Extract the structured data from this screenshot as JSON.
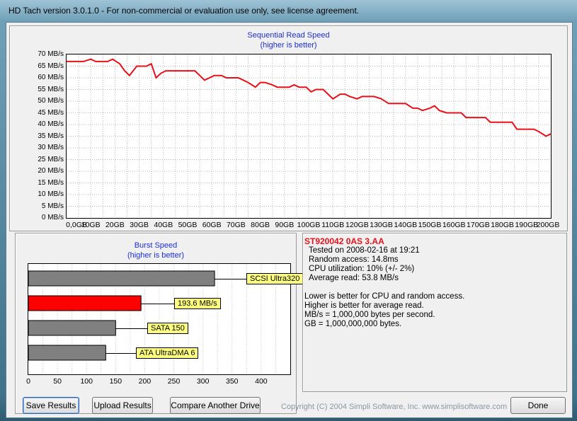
{
  "window": {
    "title": "HD Tach version 3.0.1.0  - For non-commercial or evaluation use only, see license agreement."
  },
  "sequential": {
    "title": "Sequential Read Speed",
    "subtitle": "(higher is better)",
    "y_ticks": [
      "70 MB/s",
      "65 MB/s",
      "60 MB/s",
      "55 MB/s",
      "50 MB/s",
      "45 MB/s",
      "40 MB/s",
      "35 MB/s",
      "30 MB/s",
      "25 MB/s",
      "20 MB/s",
      "15 MB/s",
      "10 MB/s",
      "5 MB/s",
      "0 MB/s"
    ],
    "x_ticks": [
      "0,0GB",
      "10GB",
      "20GB",
      "30GB",
      "40GB",
      "50GB",
      "60GB",
      "70GB",
      "80GB",
      "90GB",
      "100GB",
      "110GB",
      "120GB",
      "130GB",
      "140GB",
      "150GB",
      "160GB",
      "170GB",
      "180GB",
      "190GB",
      "200GB"
    ]
  },
  "chart_data": [
    {
      "type": "line",
      "title": "Sequential Read Speed",
      "subtitle": "(higher is better)",
      "xlabel": "",
      "ylabel": "",
      "xlim": [
        0,
        200
      ],
      "ylim": [
        0,
        70
      ],
      "x_unit": "GB",
      "y_unit": "MB/s",
      "grid": true,
      "series": [
        {
          "color": "#e8101a",
          "x": [
            0,
            4,
            7,
            10,
            12,
            14,
            17,
            19,
            22,
            24,
            26,
            29,
            30,
            33,
            35,
            37,
            39,
            41,
            44,
            47,
            50,
            53,
            55,
            57,
            59,
            61,
            64,
            66,
            68,
            71,
            73,
            75,
            78,
            80,
            82,
            85,
            87,
            89,
            92,
            94,
            96,
            99,
            101,
            103,
            106,
            108,
            110,
            113,
            115,
            117,
            120,
            122,
            124,
            127,
            130,
            133,
            136,
            138,
            140,
            143,
            145,
            147,
            150,
            152,
            154,
            157,
            159,
            161,
            163,
            165,
            168,
            171,
            173,
            175,
            178,
            181,
            184,
            186,
            188,
            191,
            193,
            195,
            198,
            200
          ],
          "y": [
            67,
            67,
            67,
            68,
            67,
            67,
            67,
            68,
            66,
            63,
            61,
            65,
            65,
            65,
            66,
            60,
            62,
            63,
            63,
            63,
            63,
            63,
            61,
            59,
            60,
            61,
            61,
            60,
            60,
            60,
            59,
            58,
            56,
            58,
            58,
            57,
            56,
            56,
            56,
            57,
            56,
            56,
            54,
            55,
            55,
            53,
            51,
            53,
            53,
            52,
            51,
            52,
            52,
            52,
            51,
            49,
            49,
            49,
            49,
            47,
            47,
            46,
            47,
            48,
            46,
            45,
            45,
            45,
            45,
            43,
            43,
            43,
            43,
            41,
            41,
            41,
            41,
            38,
            38,
            38,
            38,
            37,
            35,
            36
          ]
        }
      ]
    },
    {
      "type": "bar",
      "title": "Burst Speed",
      "subtitle": "(higher is better)",
      "orientation": "horizontal",
      "xlim": [
        0,
        450
      ],
      "x_ticks": [
        "0",
        "50",
        "100",
        "150",
        "200",
        "250",
        "300",
        "350",
        "400"
      ],
      "categories": [
        "SCSI Ultra320",
        "193.6 MB/s",
        "SATA 150",
        "ATA UltraDMA 6"
      ],
      "values": [
        320,
        193.6,
        150,
        133
      ],
      "colors": [
        "#808080",
        "#ff0000",
        "#808080",
        "#808080"
      ],
      "grid": true
    }
  ],
  "info": {
    "drive": "ST920042 0AS 3.AA",
    "tested": "Tested on 2008-02-16 at 19:21",
    "random_access": "Random access: 14.8ms",
    "cpu": "CPU utilization: 10% (+/- 2%)",
    "average_read": "Average read: 53.8 MB/s",
    "note1": "Lower is better for CPU and random access.",
    "note2": "Higher is better for average read.",
    "note3": "MB/s = 1,000,000 bytes per second.",
    "note4": "GB = 1,000,000,000 bytes."
  },
  "buttons": {
    "save": "Save Results",
    "upload": "Upload Results",
    "compare": "Compare Another Drive",
    "done": "Done"
  },
  "copyright": "Copyright (C) 2004 Simpli Software, Inc. www.simplisoftware.com"
}
